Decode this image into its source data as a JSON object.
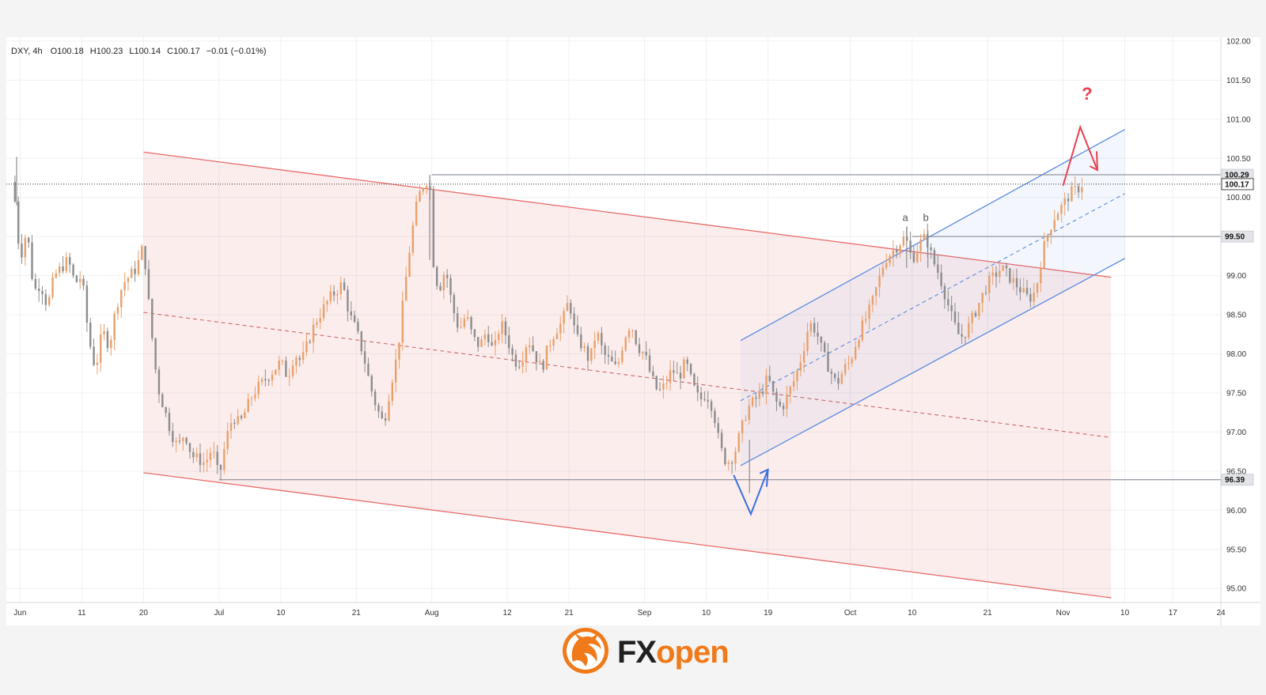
{
  "header": {
    "symbol": "DXY",
    "timeframe": "4h",
    "open": "O100.18",
    "high": "H100.23",
    "low": "L100.14",
    "close": "C100.17",
    "change": "−0.01 (−0.01%)"
  },
  "chart_data": {
    "type": "candlestick",
    "x_unit": "days since 1 Jun",
    "xlim": [
      -1,
      176
    ],
    "ylim": [
      94.82,
      102.05
    ],
    "y_ticks": [
      "95.00",
      "95.50",
      "96.00",
      "96.50",
      "97.00",
      "97.50",
      "98.00",
      "98.50",
      "99.00",
      "99.50",
      "100.00",
      "100.50",
      "101.00",
      "101.50",
      "102.00"
    ],
    "y_tick_values": [
      95.0,
      95.5,
      96.0,
      96.5,
      97.0,
      97.5,
      98.0,
      98.5,
      99.0,
      99.5,
      100.0,
      100.5,
      101.0,
      101.5,
      102.0
    ],
    "x_ticks": [
      {
        "label": "Jun",
        "x": 1
      },
      {
        "label": "11",
        "x": 10
      },
      {
        "label": "20",
        "x": 19
      },
      {
        "label": "Jul",
        "x": 30
      },
      {
        "label": "10",
        "x": 39
      },
      {
        "label": "21",
        "x": 50
      },
      {
        "label": "Aug",
        "x": 61
      },
      {
        "label": "12",
        "x": 72
      },
      {
        "label": "21",
        "x": 81
      },
      {
        "label": "Sep",
        "x": 92
      },
      {
        "label": "10",
        "x": 101
      },
      {
        "label": "19",
        "x": 110
      },
      {
        "label": "Oct",
        "x": 122
      },
      {
        "label": "10",
        "x": 131
      },
      {
        "label": "21",
        "x": 142
      },
      {
        "label": "Nov",
        "x": 153
      },
      {
        "label": "10",
        "x": 162
      },
      {
        "label": "17",
        "x": 169
      },
      {
        "label": "24",
        "x": 176
      }
    ],
    "price_path": [
      [
        0,
        100.2
      ],
      [
        1,
        99.2
      ],
      [
        2,
        99.6
      ],
      [
        3,
        98.8
      ],
      [
        4,
        98.9
      ],
      [
        5,
        98.6
      ],
      [
        6,
        99.0
      ],
      [
        8,
        99.2
      ],
      [
        9,
        98.9
      ],
      [
        10,
        99.0
      ],
      [
        11,
        98.2
      ],
      [
        12,
        97.8
      ],
      [
        13,
        98.3
      ],
      [
        14,
        98.1
      ],
      [
        15,
        98.6
      ],
      [
        16,
        98.9
      ],
      [
        18,
        99.1
      ],
      [
        19,
        99.4
      ],
      [
        20,
        98.4
      ],
      [
        21,
        97.6
      ],
      [
        22,
        97.3
      ],
      [
        23,
        97.0
      ],
      [
        24,
        96.8
      ],
      [
        25,
        97.0
      ],
      [
        26,
        96.7
      ],
      [
        28,
        96.6
      ],
      [
        29,
        96.8
      ],
      [
        30,
        96.4
      ],
      [
        31,
        96.9
      ],
      [
        32,
        97.2
      ],
      [
        33,
        97.1
      ],
      [
        35,
        97.5
      ],
      [
        36,
        97.6
      ],
      [
        38,
        97.8
      ],
      [
        39,
        97.9
      ],
      [
        40,
        97.7
      ],
      [
        41,
        98.0
      ],
      [
        42,
        97.9
      ],
      [
        44,
        98.4
      ],
      [
        46,
        98.7
      ],
      [
        48,
        98.9
      ],
      [
        49,
        98.5
      ],
      [
        50,
        98.3
      ],
      [
        51,
        98.0
      ],
      [
        52,
        97.6
      ],
      [
        53,
        97.3
      ],
      [
        54,
        97.1
      ],
      [
        55,
        97.6
      ],
      [
        56,
        98.0
      ],
      [
        57,
        98.8
      ],
      [
        58,
        99.5
      ],
      [
        59,
        100.0
      ],
      [
        60,
        100.2
      ],
      [
        60.7,
        100.25
      ],
      [
        61,
        99.3
      ],
      [
        62,
        98.8
      ],
      [
        63,
        99.1
      ],
      [
        64,
        98.6
      ],
      [
        65,
        98.3
      ],
      [
        66,
        98.5
      ],
      [
        67,
        98.2
      ],
      [
        68,
        98.1
      ],
      [
        69,
        98.3
      ],
      [
        70,
        98.0
      ],
      [
        71,
        98.4
      ],
      [
        72,
        98.2
      ],
      [
        73,
        97.9
      ],
      [
        74,
        97.9
      ],
      [
        75,
        98.2
      ],
      [
        76,
        98.0
      ],
      [
        77,
        97.8
      ],
      [
        78,
        98.1
      ],
      [
        79,
        98.3
      ],
      [
        80,
        98.4
      ],
      [
        81,
        98.7
      ],
      [
        82,
        98.2
      ],
      [
        83,
        98.1
      ],
      [
        84,
        97.9
      ],
      [
        85,
        98.3
      ],
      [
        86,
        98.0
      ],
      [
        87,
        97.9
      ],
      [
        88,
        97.8
      ],
      [
        89,
        98.2
      ],
      [
        90,
        98.4
      ],
      [
        91,
        98.1
      ],
      [
        92,
        98.0
      ],
      [
        93,
        97.7
      ],
      [
        94,
        97.5
      ],
      [
        95,
        97.6
      ],
      [
        96,
        97.8
      ],
      [
        97,
        97.7
      ],
      [
        98,
        97.9
      ],
      [
        99,
        97.6
      ],
      [
        100,
        97.4
      ],
      [
        101,
        97.5
      ],
      [
        102,
        97.3
      ],
      [
        103,
        96.8
      ],
      [
        104,
        96.6
      ],
      [
        105,
        96.7
      ],
      [
        106,
        97.0
      ],
      [
        107,
        97.3
      ],
      [
        108,
        97.4
      ],
      [
        109,
        97.5
      ],
      [
        110,
        97.7
      ],
      [
        111,
        97.4
      ],
      [
        112,
        97.3
      ],
      [
        113,
        97.5
      ],
      [
        114,
        97.7
      ],
      [
        115,
        98.0
      ],
      [
        116,
        98.4
      ],
      [
        117,
        98.3
      ],
      [
        118,
        98.0
      ],
      [
        119,
        97.8
      ],
      [
        120,
        97.6
      ],
      [
        121,
        97.8
      ],
      [
        122,
        97.9
      ],
      [
        123,
        98.2
      ],
      [
        124,
        98.4
      ],
      [
        125,
        98.6
      ],
      [
        126,
        98.9
      ],
      [
        127,
        99.2
      ],
      [
        128,
        99.3
      ],
      [
        129,
        99.4
      ],
      [
        130,
        99.5
      ],
      [
        131,
        99.2
      ],
      [
        132,
        99.4
      ],
      [
        133,
        99.5
      ],
      [
        134,
        99.2
      ],
      [
        135,
        99.0
      ],
      [
        136,
        98.7
      ],
      [
        137,
        98.4
      ],
      [
        138,
        98.2
      ],
      [
        139,
        98.3
      ],
      [
        140,
        98.5
      ],
      [
        141,
        98.7
      ],
      [
        142,
        98.9
      ],
      [
        143,
        99.0
      ],
      [
        144,
        99.1
      ],
      [
        145,
        99.0
      ],
      [
        146,
        98.9
      ],
      [
        147,
        98.8
      ],
      [
        148,
        98.7
      ],
      [
        149,
        98.8
      ],
      [
        150,
        99.3
      ],
      [
        151,
        99.6
      ],
      [
        152,
        99.8
      ],
      [
        153,
        99.9
      ],
      [
        154,
        100.05
      ],
      [
        155,
        100.1
      ],
      [
        155.8,
        100.17
      ]
    ],
    "levels": [
      {
        "label": "100.29",
        "value": 100.29,
        "x_start": 61
      },
      {
        "label": "99.50",
        "value": 99.5,
        "x_start": 131
      },
      {
        "label": "96.39",
        "value": 96.39,
        "x_start": 30
      },
      {
        "label": "100.17",
        "value": 100.17,
        "x_start": -1,
        "dotted": true,
        "current": true
      }
    ],
    "descending_channel": {
      "upper": [
        [
          19,
          100.58
        ],
        [
          160,
          98.98
        ]
      ],
      "lower": [
        [
          19,
          96.48
        ],
        [
          160,
          94.88
        ]
      ],
      "middle": [
        [
          19,
          98.53
        ],
        [
          160,
          96.93
        ]
      ]
    },
    "ascending_channel": {
      "upper": [
        [
          106,
          98.17
        ],
        [
          162,
          100.87
        ]
      ],
      "lower": [
        [
          106,
          96.57
        ],
        [
          162,
          99.22
        ]
      ],
      "middle": [
        [
          106,
          97.4
        ],
        [
          162,
          100.05
        ]
      ]
    },
    "blue_arrow": {
      "path": [
        [
          105,
          96.45
        ],
        [
          107.5,
          95.95
        ],
        [
          110,
          96.52
        ]
      ]
    },
    "red_arrow": {
      "path": [
        [
          153,
          100.15
        ],
        [
          155.5,
          100.9
        ],
        [
          158,
          100.35
        ]
      ]
    },
    "annotations": [
      {
        "text": "a",
        "x": 130,
        "y": 99.7
      },
      {
        "text": "b",
        "x": 133,
        "y": 99.7
      },
      {
        "text": "?",
        "x": 156.5,
        "y": 101.25
      }
    ]
  },
  "brand": {
    "logo_fx": "FX",
    "logo_open": "open",
    "brand_color": "#f07a1a",
    "dark_color": "#202020"
  },
  "colors": {
    "bull": "#e8a06a",
    "bear": "#8c8c8c",
    "descending_channel": "#e86a6a",
    "ascending_channel": "#5b8ae0",
    "red_arrow": "#e84050",
    "blue_arrow": "#3b6fe0"
  }
}
